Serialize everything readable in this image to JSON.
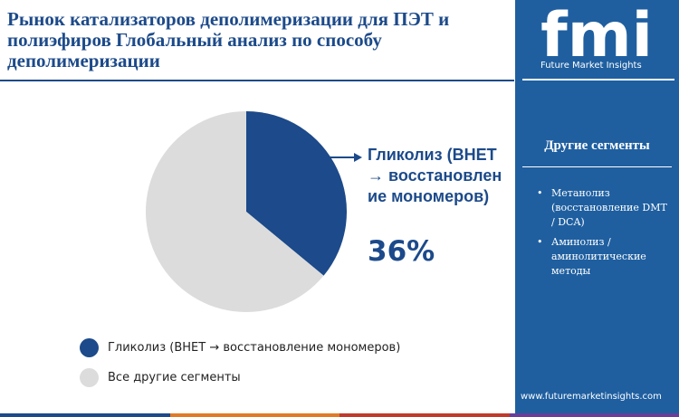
{
  "title": "Рынок катализаторов деполимеризации для ПЭТ и полиэфиров Глобальный анализ по способу деполимеризации",
  "colors": {
    "primary": "#1c4a8a",
    "other": "#dcdcdc",
    "sidebar": "#1f5fa0"
  },
  "chart_data": {
    "type": "pie",
    "title": "Рынок катализаторов деполимеризации для ПЭТ и полиэфиров Глобальный анализ по способу деполимеризации",
    "categories": [
      "Гликолиз (BHET → восстановление мономеров)",
      "Все другие сегменты"
    ],
    "values": [
      36,
      64
    ],
    "unit": "%",
    "highlighted": {
      "label": "Гликолиз (BHET → восстановление мономеров)",
      "value_label": "36%"
    },
    "legend": [
      "Гликолиз (BHET → восстановление мономеров)",
      "Все другие сегменты"
    ]
  },
  "sidebar": {
    "logo_text": "fmi",
    "logo_subtitle": "Future Market Insights",
    "heading": "Другие сегменты",
    "items": [
      "Метанолиз (восстановление DMT / DCA)",
      "Аминолиз / аминолитические методы"
    ],
    "bullet": "•",
    "website": "www.futuremarketinsights.com"
  },
  "bottom_bar_colors": [
    "#1c4a8a",
    "#e07a26",
    "#c0392b",
    "#6a3d9a"
  ]
}
